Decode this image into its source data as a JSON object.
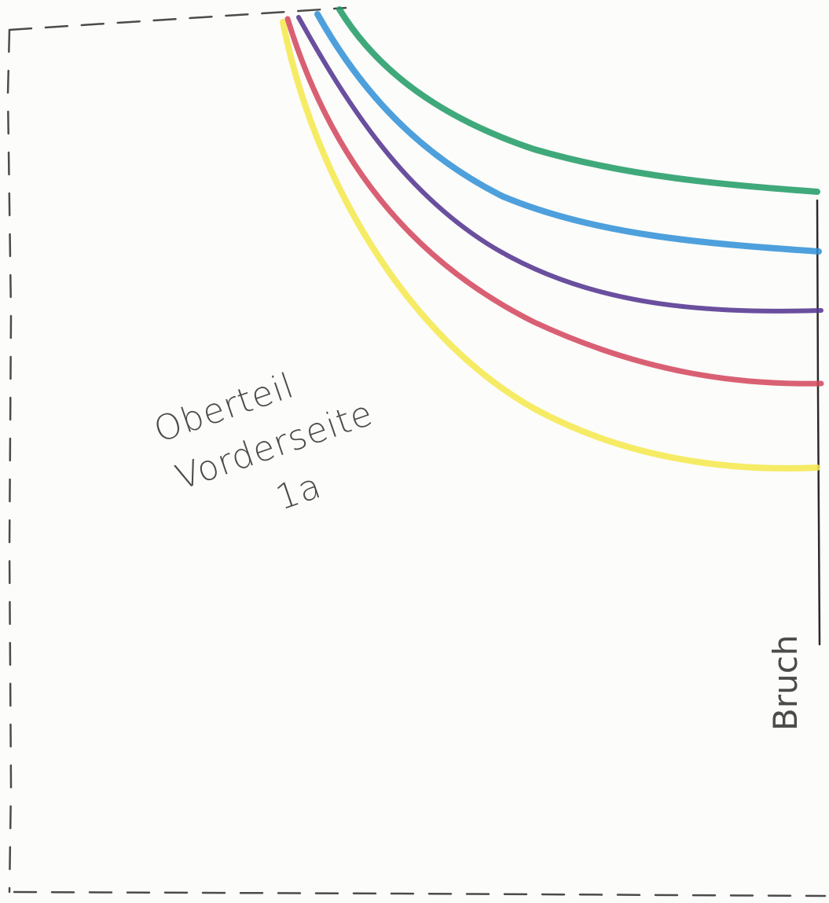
{
  "piece": {
    "title_line1": "Oberteil",
    "title_line2": "Vorderseite",
    "piece_number": "1a",
    "fold_label": "Bruch"
  },
  "neckline_variants": [
    {
      "name": "yellow",
      "color": "#f5e84a"
    },
    {
      "name": "red",
      "color": "#d2445a"
    },
    {
      "name": "purple",
      "color": "#5a3c94"
    },
    {
      "name": "blue",
      "color": "#2e8fd6"
    },
    {
      "name": "green",
      "color": "#1f9a64"
    }
  ],
  "colors": {
    "paper": "#fcfcfa",
    "ink": "#4b4b4b",
    "fold_line": "#2a2a2a"
  }
}
